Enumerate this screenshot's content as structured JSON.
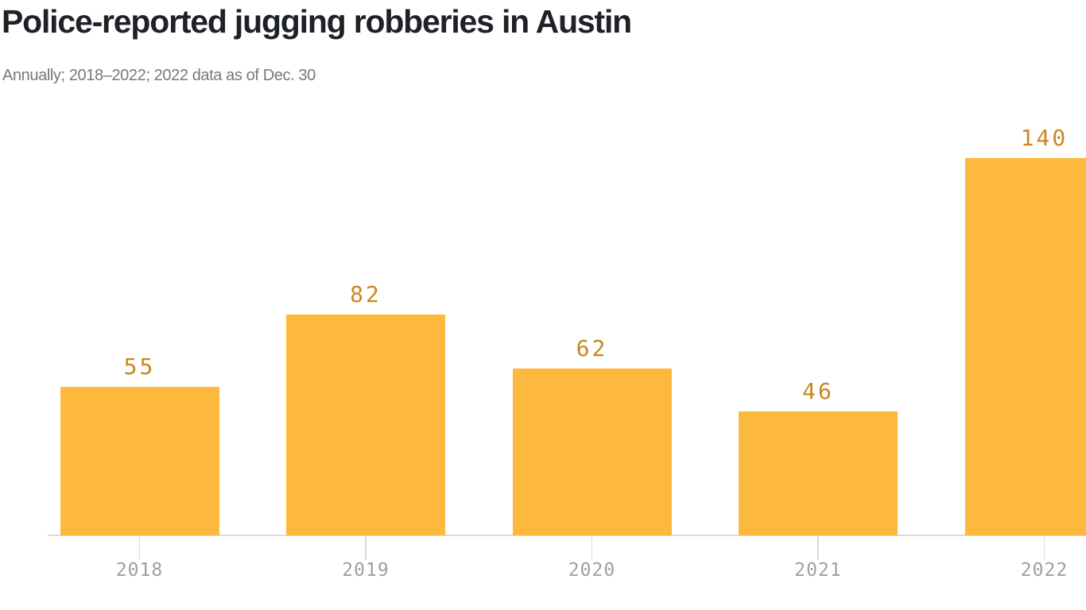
{
  "header": {
    "title": "Police-reported jugging robberies in Austin",
    "subtitle": "Annually; 2018–2022; 2022 data as of Dec. 30"
  },
  "chart_data": {
    "type": "bar",
    "title": "Police-reported jugging robberies in Austin",
    "subtitle": "Annually; 2018–2022; 2022 data as of Dec. 30",
    "categories": [
      "2018",
      "2019",
      "2020",
      "2021",
      "2022"
    ],
    "values": [
      55,
      82,
      62,
      46,
      140
    ],
    "value_labels": [
      "55",
      "82",
      "62",
      "46",
      "140"
    ],
    "xlabel": "",
    "ylabel": "",
    "ylim": [
      0,
      140
    ],
    "grid": false,
    "legend": false,
    "colors": {
      "bar_fill": "#fdb93e",
      "value_label": "#c8871f",
      "axis_tick_label": "#9ba0a5",
      "axis_line": "#d9dadc",
      "title": "#1e2126",
      "subtitle": "#74797f"
    }
  }
}
